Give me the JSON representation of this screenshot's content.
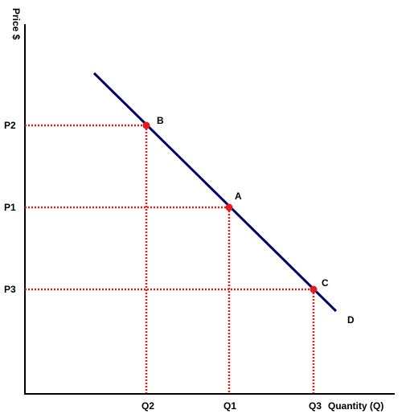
{
  "axes": {
    "y_label": "Price $",
    "x_label": "Quantity (Q)"
  },
  "curve_label": "D",
  "points": [
    {
      "label": "B",
      "price": "P2",
      "quantity": "Q2"
    },
    {
      "label": "A",
      "price": "P1",
      "quantity": "Q1"
    },
    {
      "label": "C",
      "price": "P3",
      "quantity": "Q3"
    }
  ]
}
